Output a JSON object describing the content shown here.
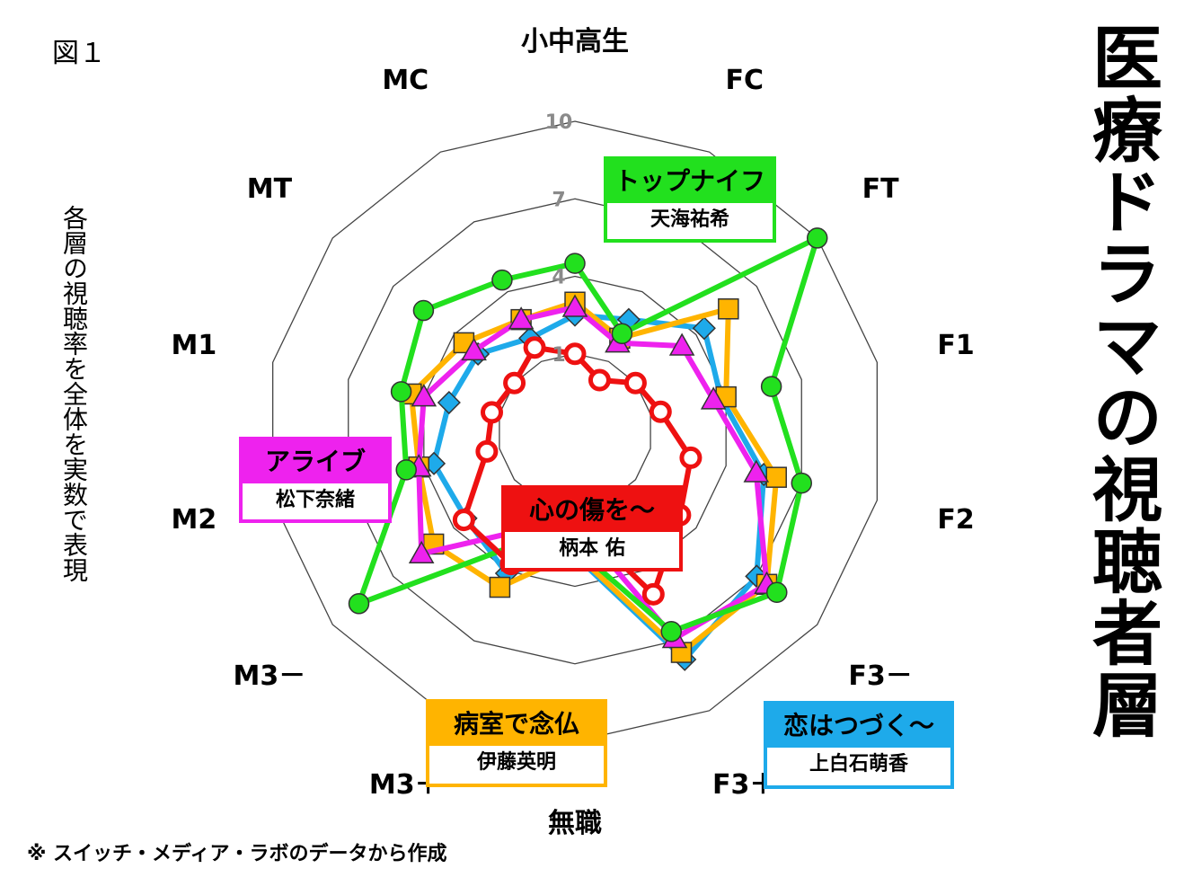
{
  "header": {
    "fig_label": "図１",
    "title": "医療ドラマの視聴者層"
  },
  "ylabel": "各層の視聴率を全体を実数で表現",
  "source_note": "※ スイッチ・メディア・ラボのデータから作成",
  "legend_boxes": {
    "top_knife": {
      "title": "トップナイフ",
      "actor": "天海祐希",
      "color": "#22e01e"
    },
    "alive": {
      "title": "アライブ",
      "actor": "松下奈緒",
      "color": "#ee22ee"
    },
    "kokoro": {
      "title": "心の傷を～",
      "actor": "柄本 佑",
      "color": "#ee1111"
    },
    "byoushitsu": {
      "title": "病室で念仏",
      "actor": "伊藤英明",
      "color": "#ffb400"
    },
    "koi": {
      "title": "恋はつづく～",
      "actor": "上白石萌香",
      "color": "#1eaaea"
    }
  },
  "chart_data": {
    "type": "radar",
    "categories": [
      "小中高生",
      "FC",
      "FT",
      "F1",
      "F2",
      "F3－",
      "F3＋",
      "無職",
      "M3＋",
      "M3－",
      "M2",
      "M1",
      "MT",
      "MC"
    ],
    "ticks": [
      1,
      4,
      7,
      10
    ],
    "rlim": [
      -2,
      10
    ],
    "grid": true,
    "series": [
      {
        "name": "恋はつづく～",
        "color": "#1eaaea",
        "marker": "diamond",
        "values": [
          2.5,
          2.8,
          4.4,
          3.8,
          5.5,
          7.0,
          7.8,
          2.8,
          4.1,
          3.4,
          3.6,
          3.0,
          2.8,
          2.0
        ]
      },
      {
        "name": "病室で念仏",
        "color": "#ffb400",
        "marker": "square",
        "values": [
          3.0,
          2.0,
          5.6,
          4.0,
          6.0,
          7.5,
          7.5,
          2.7,
          4.7,
          5.0,
          4.2,
          4.5,
          3.5,
          2.8
        ]
      },
      {
        "name": "アライブ",
        "color": "#ee22ee",
        "marker": "triangle",
        "values": [
          2.8,
          1.8,
          3.3,
          3.5,
          5.2,
          7.5,
          6.9,
          1.5,
          2.2,
          5.6,
          4.2,
          4.0,
          3.0,
          2.8
        ]
      },
      {
        "name": "トップナイフ",
        "color": "#22e01e",
        "marker": "circle",
        "values": [
          4.5,
          2.2,
          10.0,
          5.8,
          7.0,
          8.0,
          6.6,
          2.5,
          2.8,
          8.7,
          4.7,
          4.9,
          5.5,
          4.5
        ]
      },
      {
        "name": "心の傷を～",
        "color": "#ee1111",
        "marker": "circle-open",
        "values": [
          1.0,
          0.2,
          1.0,
          1.4,
          2.6,
          3.2,
          5.0,
          1.4,
          3.7,
          3.5,
          1.5,
          1.3,
          1.0,
          1.6
        ]
      }
    ]
  }
}
